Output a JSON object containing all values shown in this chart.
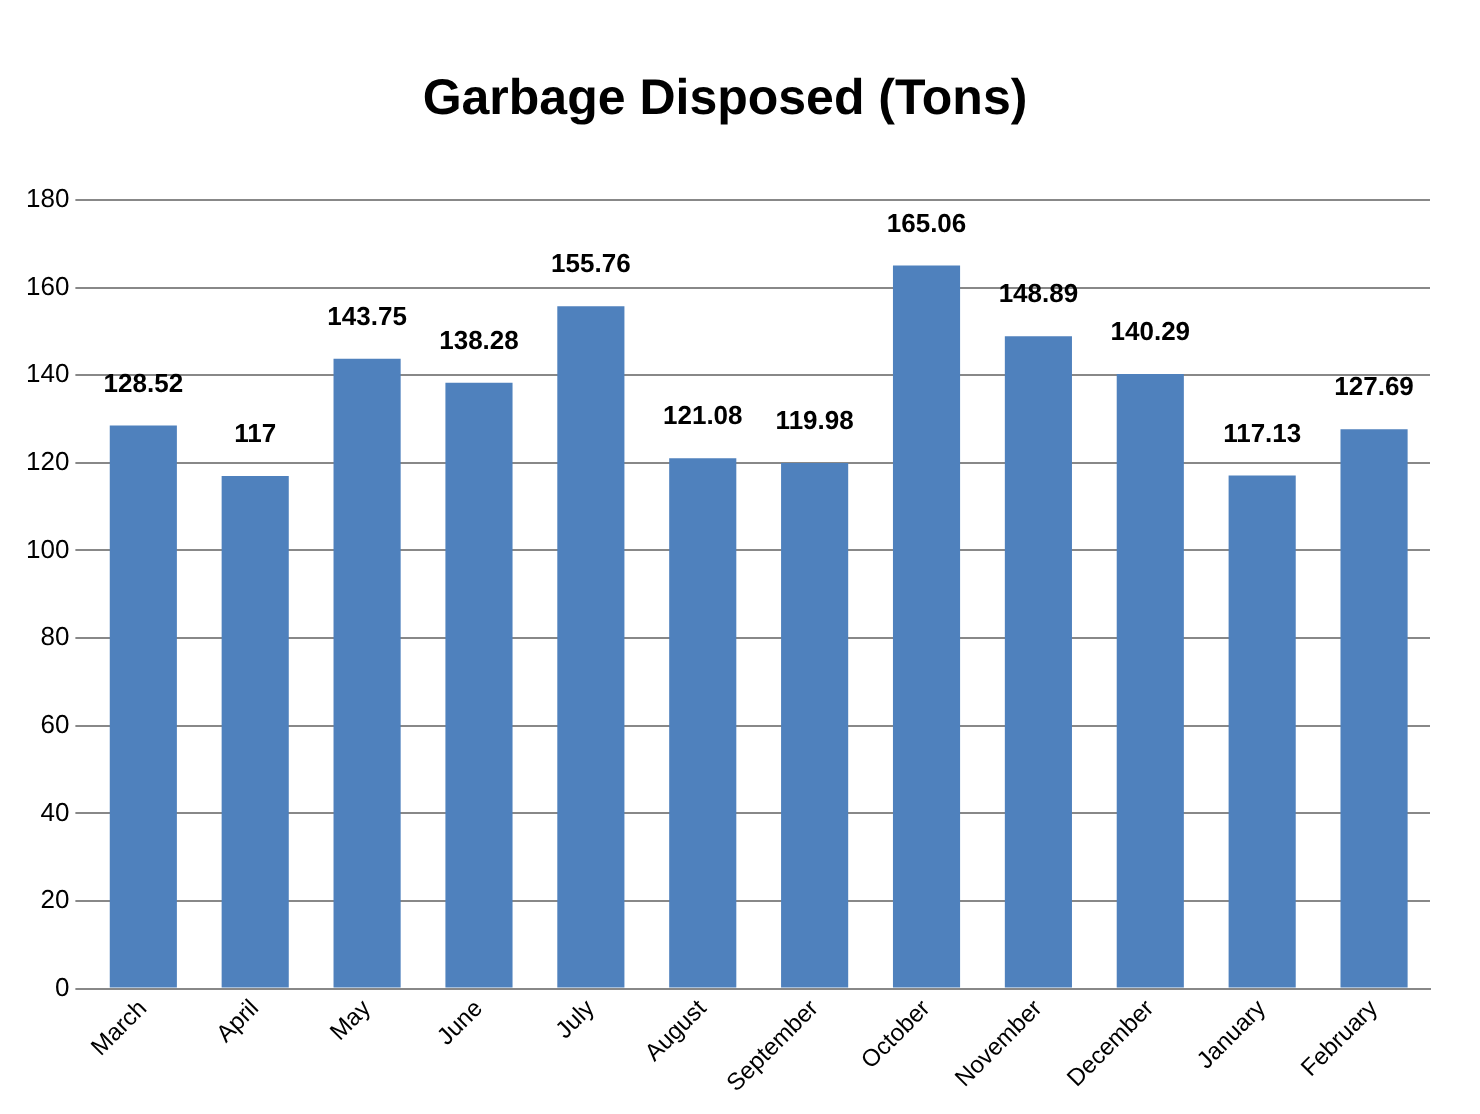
{
  "chart_data": {
    "type": "bar",
    "title": "Garbage Disposed (Tons)",
    "categories": [
      "March",
      "April",
      "May",
      "June",
      "July",
      "August",
      "September",
      "October",
      "November",
      "December",
      "January",
      "February"
    ],
    "values": [
      128.52,
      117,
      143.75,
      138.28,
      155.76,
      121.08,
      119.98,
      165.06,
      148.89,
      140.29,
      117.13,
      127.69
    ],
    "color": "#4f81bd",
    "ylim": [
      0,
      180
    ],
    "yticks": [
      0,
      20,
      40,
      60,
      80,
      100,
      120,
      140,
      160,
      180
    ],
    "grid": "y",
    "data_labels": true,
    "legend": false
  }
}
